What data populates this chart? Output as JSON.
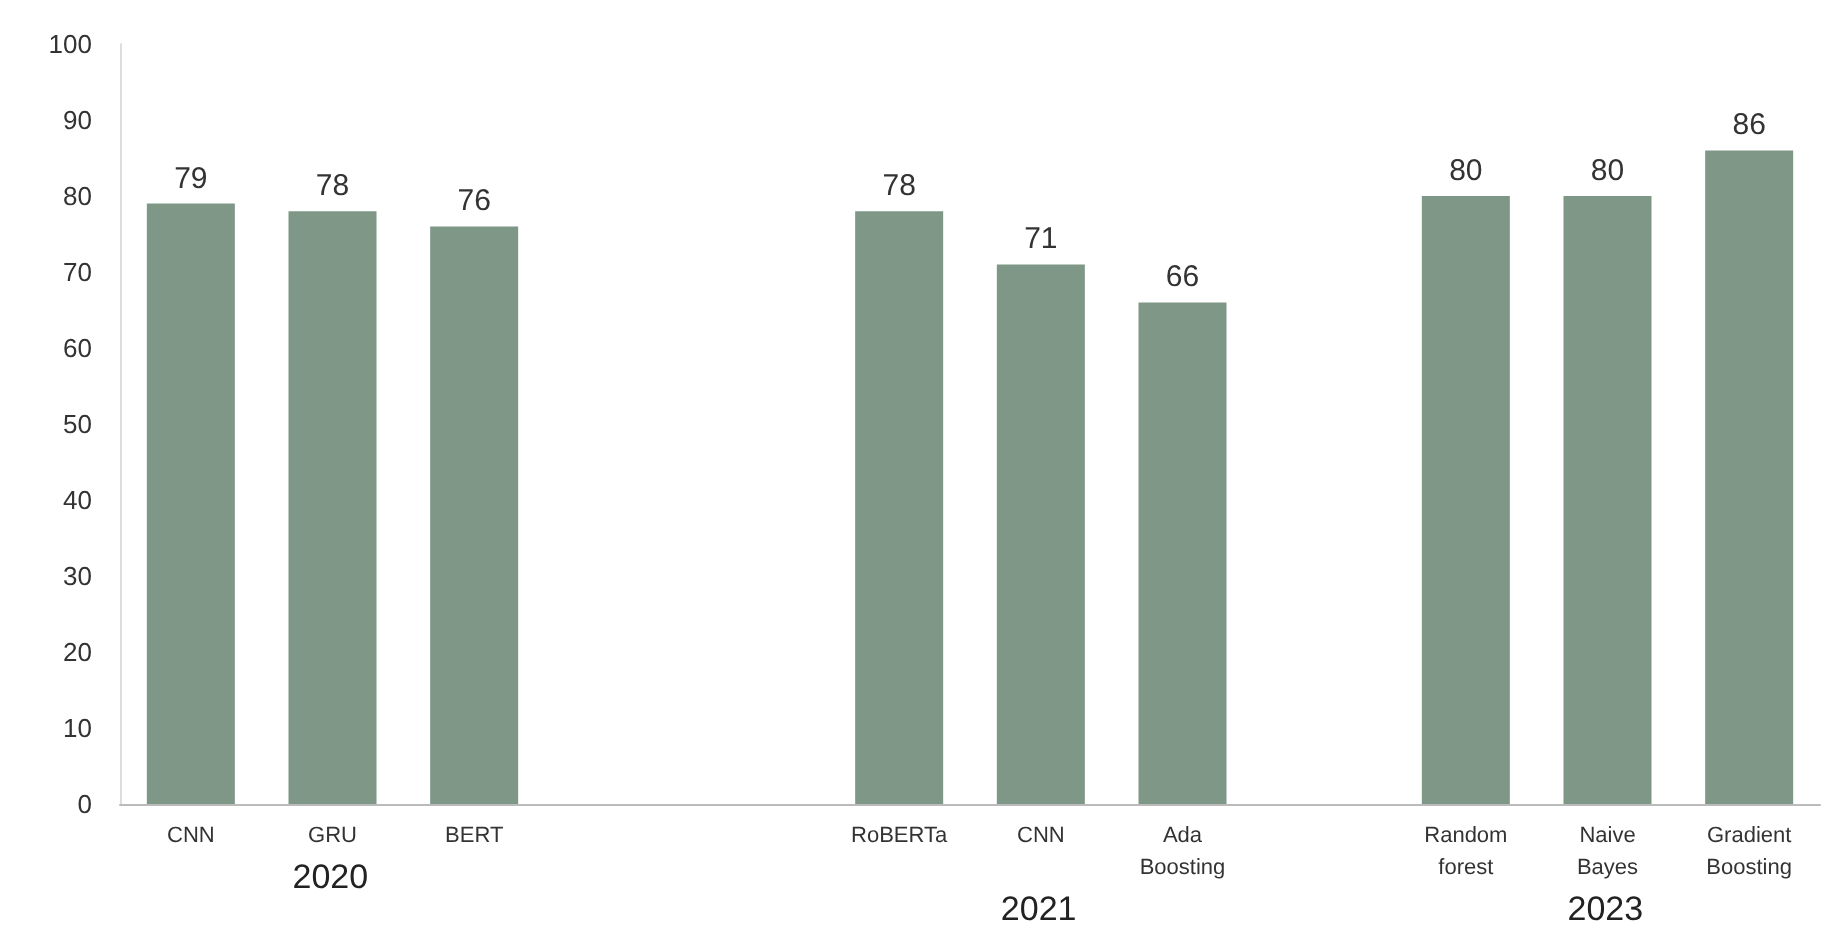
{
  "chart_data": {
    "type": "bar",
    "categories": [
      "CNN",
      "GRU",
      "BERT",
      null,
      null,
      "RoBERTa",
      "CNN",
      "Ada Boosting",
      null,
      "Random forest",
      "Naive Bayes",
      "Gradient Boosting"
    ],
    "values": [
      79,
      78,
      76,
      null,
      null,
      78,
      71,
      66,
      null,
      80,
      80,
      86
    ],
    "color": "#7e9787",
    "ylim": [
      0,
      100
    ],
    "yticks": [
      0,
      10,
      20,
      30,
      40,
      50,
      60,
      70,
      80,
      90,
      100
    ],
    "grid": false,
    "data_labels": true,
    "annotations": [
      "2020",
      "2021",
      "2023"
    ]
  }
}
